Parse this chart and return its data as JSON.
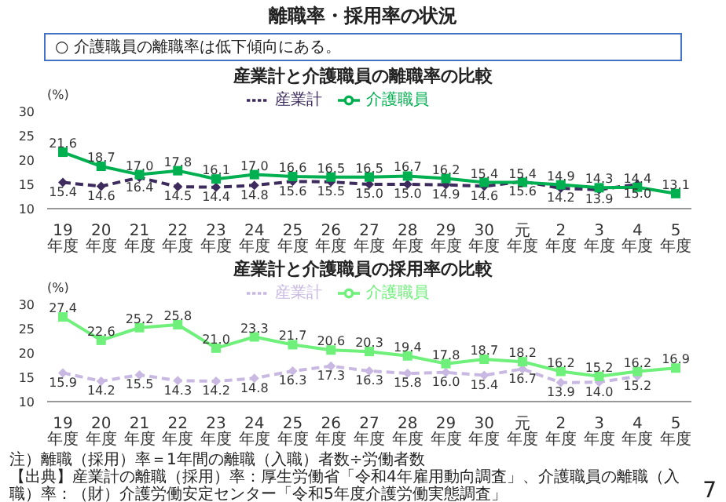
{
  "chart_data": [
    {
      "type": "line",
      "title": "産業計と介護職員の離職率の比較",
      "ylabel": "(%)",
      "legend": "top",
      "ylim": [
        10,
        30
      ],
      "yticks": [
        10,
        15,
        20,
        25,
        30
      ],
      "annotations": [
        "離職率・採用率の状況",
        "○ 介護職員の離職率は低下傾向にある。"
      ],
      "categories": [
        "19年度",
        "20年度",
        "21年度",
        "22年度",
        "23年度",
        "24年度",
        "25年度",
        "26年度",
        "27年度",
        "28年度",
        "29年度",
        "30年度",
        "元年度",
        "2年度",
        "3年度",
        "4年度",
        "5年度"
      ],
      "series": [
        {
          "name": "産業計",
          "color": "#3d2b5e",
          "marker": "diamond",
          "line_style": "dashed",
          "values": [
            15.4,
            14.6,
            16.4,
            14.5,
            14.4,
            14.8,
            15.6,
            15.5,
            15.0,
            15.0,
            14.9,
            14.6,
            15.6,
            14.2,
            13.9,
            15.0,
            null
          ],
          "value_labels": [
            "15.4",
            "14.6",
            "16.4",
            "14.5",
            "14.4",
            "14.8",
            "15.6",
            "15.5",
            "15.0",
            "15.0",
            "14.9",
            "14.6",
            "15.6",
            "14.2",
            "13.9",
            "15.0",
            null
          ]
        },
        {
          "name": "介護職員",
          "color": "#00b050",
          "marker": "square",
          "line_style": "solid",
          "values": [
            21.6,
            18.7,
            17.0,
            17.8,
            16.1,
            17.0,
            16.6,
            16.5,
            16.5,
            16.7,
            16.2,
            15.4,
            15.4,
            14.9,
            14.3,
            14.4,
            13.1
          ],
          "value_labels": [
            "21.6",
            "18.7",
            "17.0",
            "17.8",
            "16.1",
            "17.0",
            "16.6",
            "16.5",
            "16.5",
            "16.7",
            "16.2",
            "15.4",
            "15.4",
            "14.9",
            "14.3",
            "14.4",
            "13.1"
          ]
        }
      ]
    },
    {
      "type": "line",
      "title": "産業計と介護職員の採用率の比較",
      "ylabel": "(%)",
      "legend": "top",
      "ylim": [
        10,
        30
      ],
      "yticks": [
        10,
        15,
        20,
        25,
        30
      ],
      "annotations": [
        "注）離職（採用）率＝1年間の離職（入職）者数÷労働者数",
        "【出典】産業計の離職（採用）率：厚生労働省「令和4年雇用動向調査」、介護職員の離職（入職）率：（財）介護労働安定センター「令和5年度介護労働実態調査」",
        "7"
      ],
      "categories": [
        "19年度",
        "20年度",
        "21年度",
        "22年度",
        "23年度",
        "24年度",
        "25年度",
        "26年度",
        "27年度",
        "28年度",
        "29年度",
        "30年度",
        "元年度",
        "2年度",
        "3年度",
        "4年度",
        "5年度"
      ],
      "series": [
        {
          "name": "産業計",
          "color": "#c8b8e2",
          "marker": "diamond",
          "line_style": "dashed",
          "values": [
            15.9,
            14.2,
            15.5,
            14.3,
            14.2,
            14.8,
            16.3,
            17.3,
            16.3,
            15.8,
            16.0,
            15.4,
            16.7,
            13.9,
            14.0,
            15.2,
            null
          ],
          "value_labels": [
            "15.9",
            "14.2",
            "15.5",
            "14.3",
            "14.2",
            "14.8",
            "16.3",
            "17.3",
            "16.3",
            "15.8",
            "16.0",
            "15.4",
            "16.7",
            "13.9",
            "14.0",
            "15.2",
            null
          ]
        },
        {
          "name": "介護職員",
          "color": "#6ef07a",
          "marker": "square",
          "line_style": "solid",
          "values": [
            27.4,
            22.6,
            25.2,
            25.8,
            21.0,
            23.3,
            21.7,
            20.6,
            20.3,
            19.4,
            17.8,
            18.7,
            18.2,
            16.2,
            15.2,
            16.2,
            16.9
          ],
          "value_labels": [
            "27.4",
            "22.6",
            "25.2",
            "25.8",
            "21.0",
            "23.3",
            "21.7",
            "20.6",
            "20.3",
            "19.4",
            "17.8",
            "18.7",
            "18.2",
            "16.2",
            "15.2",
            "16.2",
            "16.9"
          ]
        }
      ]
    }
  ]
}
